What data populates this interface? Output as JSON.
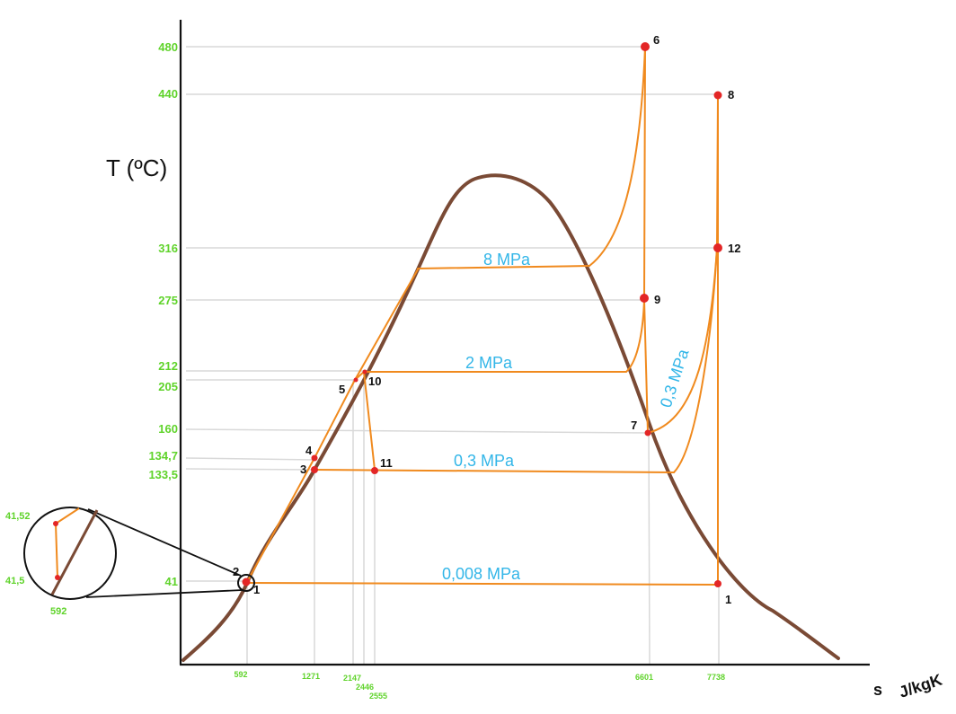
{
  "chart_data": {
    "type": "diagram",
    "ylabel": "T (ºC)",
    "xlabel": "s",
    "xunit": "J/kgK",
    "y_ticks": [
      "480",
      "440",
      "316",
      "275",
      "212",
      "205",
      "160",
      "134,7",
      "133,5",
      "41"
    ],
    "x_ticks": [
      "592",
      "1271",
      "2147",
      "2446",
      "2555",
      "6601",
      "7738"
    ],
    "zoom_ticks": [
      "41,52",
      "41,5",
      "592"
    ],
    "isobars": [
      "8 MPa",
      "2 MPa",
      "0,3 MPa",
      "0,008 MPa",
      "0,3 MPa"
    ],
    "points": [
      {
        "label": "1"
      },
      {
        "label": "2"
      },
      {
        "label": "3"
      },
      {
        "label": "4"
      },
      {
        "label": "5"
      },
      {
        "label": "6"
      },
      {
        "label": "7"
      },
      {
        "label": "8"
      },
      {
        "label": "9"
      },
      {
        "label": "10"
      },
      {
        "label": "11"
      },
      {
        "label": "12"
      },
      {
        "label": "1"
      }
    ],
    "colors": {
      "saturation_dome": "#7a4a35",
      "cycle": "#f08a1e",
      "points": "#e32626",
      "ticks": "#5fd32a",
      "isobar_labels": "#33b6e8",
      "gridlines": "#d9d9d9"
    }
  }
}
